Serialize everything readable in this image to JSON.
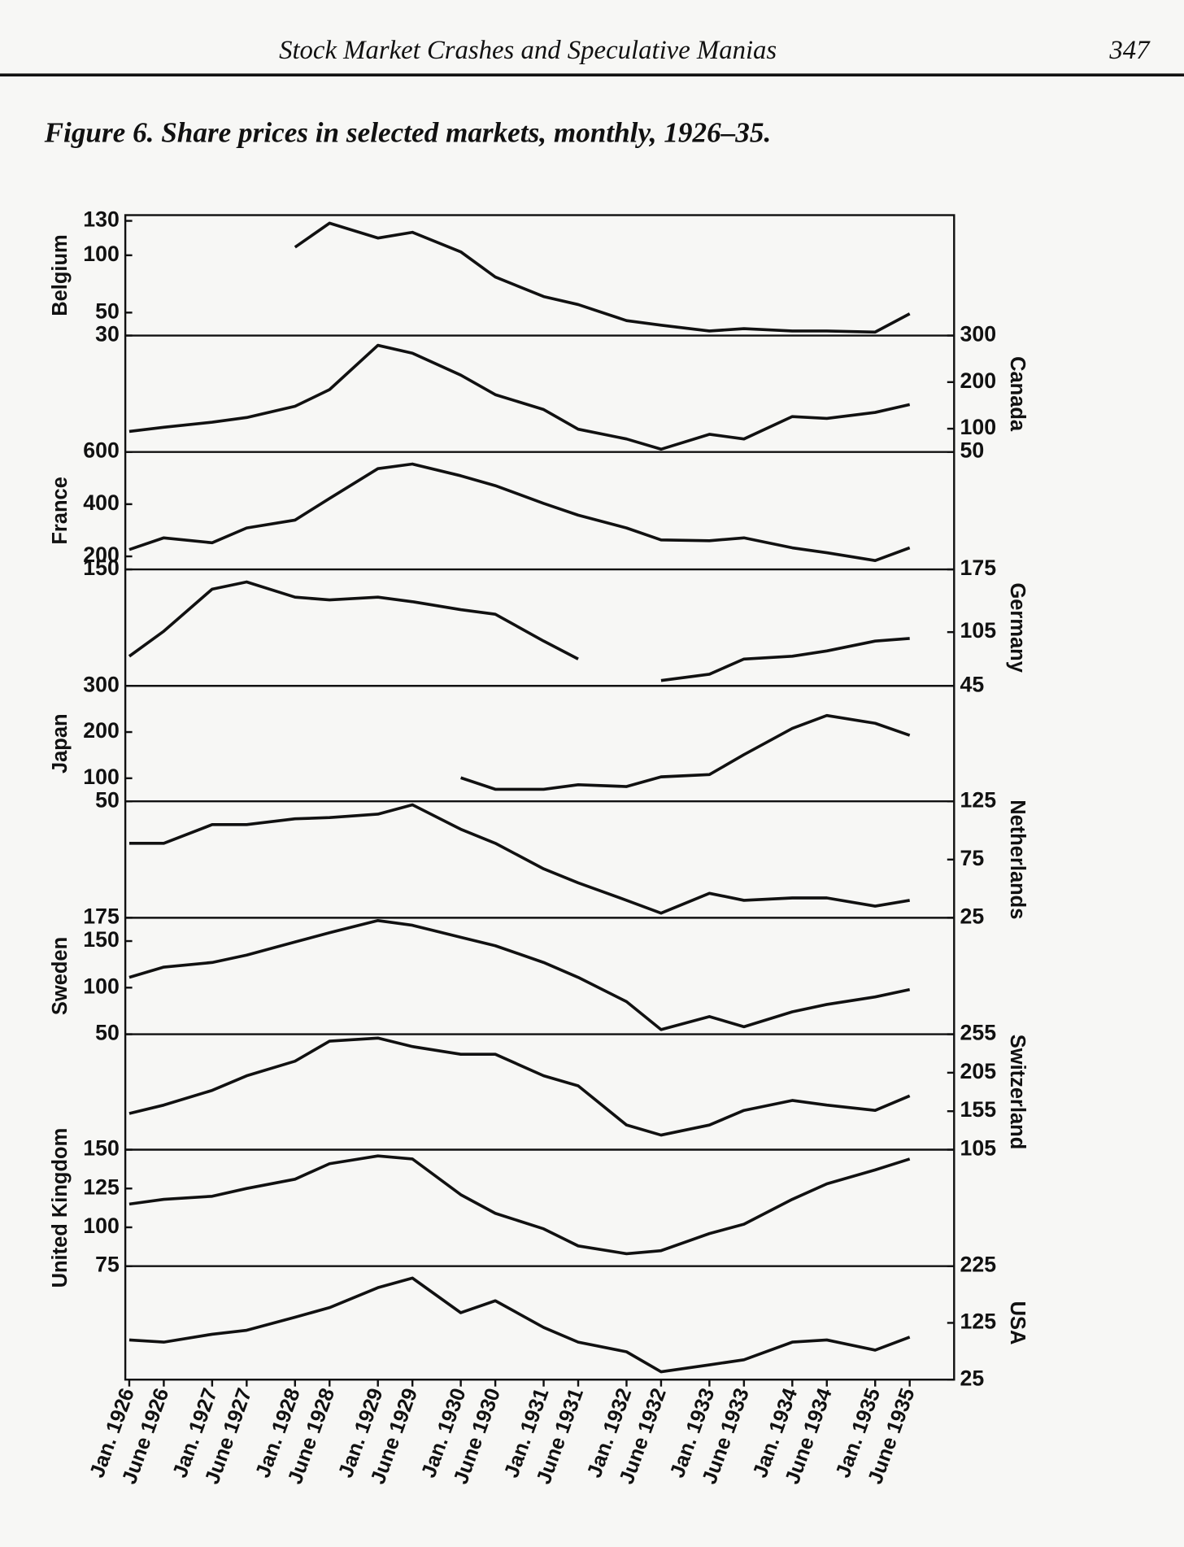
{
  "header": {
    "title": "Stock Market Crashes and Speculative Manias",
    "page_number": "347"
  },
  "caption": "Figure 6. Share prices in selected markets, monthly, 1926–35.",
  "chart_data": [
    {
      "type": "line",
      "ylabel": "Belgium",
      "y_axis": "left",
      "color": "#111111",
      "ylim": [
        30,
        135
      ],
      "yticks": [
        30,
        50,
        100,
        130
      ],
      "values": [
        null,
        null,
        null,
        null,
        107,
        128,
        115,
        120,
        103,
        81,
        64,
        57,
        43,
        39,
        34,
        36,
        34,
        34,
        33,
        49
      ]
    },
    {
      "type": "line",
      "ylabel": "Canada",
      "y_axis": "right",
      "color": "#111111",
      "ylim": [
        50,
        300
      ],
      "yticks": [
        50,
        100,
        200,
        300
      ],
      "values": [
        94,
        103,
        114,
        124,
        148,
        184,
        279,
        262,
        215,
        173,
        141,
        99,
        78,
        56,
        88,
        78,
        126,
        122,
        135,
        152
      ]
    },
    {
      "type": "line",
      "ylabel": "France",
      "y_axis": "left",
      "color": "#111111",
      "ylim": [
        150,
        600
      ],
      "yticks": [
        150,
        200,
        400,
        600
      ],
      "values": [
        226,
        271,
        252,
        309,
        339,
        422,
        536,
        554,
        509,
        471,
        403,
        358,
        309,
        263,
        260,
        271,
        233,
        214,
        184,
        233
      ]
    },
    {
      "type": "line",
      "ylabel": "Germany",
      "y_axis": "right",
      "color": "#111111",
      "ylim": [
        45,
        175
      ],
      "yticks": [
        45,
        105,
        175
      ],
      "values": [
        78,
        106,
        153,
        161,
        144,
        141,
        144,
        139,
        130,
        125,
        95,
        75,
        null,
        51,
        58,
        75,
        78,
        84,
        95,
        98
      ]
    },
    {
      "type": "line",
      "ylabel": "Japan",
      "y_axis": "left",
      "color": "#111111",
      "ylim": [
        50,
        300
      ],
      "yticks": [
        50,
        100,
        200,
        300
      ],
      "values": [
        null,
        null,
        null,
        null,
        null,
        null,
        null,
        null,
        101,
        76,
        76,
        86,
        82,
        103,
        108,
        151,
        208,
        236,
        219,
        193
      ]
    },
    {
      "type": "line",
      "ylabel": "Netherlands",
      "y_axis": "right",
      "color": "#111111",
      "ylim": [
        25,
        125
      ],
      "yticks": [
        25,
        75,
        125
      ],
      "values": [
        89,
        89,
        105,
        105,
        110,
        111,
        114,
        122,
        101,
        89,
        67,
        55,
        40,
        29,
        46,
        40,
        42,
        42,
        35,
        40
      ]
    },
    {
      "type": "line",
      "ylabel": "Sweden",
      "y_axis": "left",
      "color": "#111111",
      "ylim": [
        50,
        175
      ],
      "yticks": [
        50,
        100,
        150,
        175
      ],
      "values": [
        111,
        122,
        127,
        135,
        149,
        159,
        172,
        167,
        154,
        145,
        127,
        111,
        85,
        55,
        69,
        58,
        74,
        82,
        90,
        98
      ]
    },
    {
      "type": "line",
      "ylabel": "Switzerland",
      "y_axis": "right",
      "color": "#111111",
      "ylim": [
        105,
        255
      ],
      "yticks": [
        105,
        155,
        205,
        255
      ],
      "values": [
        152,
        163,
        182,
        201,
        220,
        246,
        250,
        239,
        229,
        229,
        201,
        188,
        137,
        124,
        137,
        156,
        169,
        163,
        156,
        175
      ]
    },
    {
      "type": "line",
      "ylabel": "United Kingdom",
      "y_axis": "left",
      "color": "#111111",
      "ylim": [
        75,
        150
      ],
      "yticks": [
        75,
        100,
        125,
        150
      ],
      "values": [
        115,
        118,
        120,
        125,
        131,
        141,
        146,
        144,
        121,
        109,
        99,
        88,
        83,
        85,
        96,
        102,
        118,
        128,
        137,
        144
      ]
    },
    {
      "type": "line",
      "ylabel": "USA",
      "y_axis": "right",
      "color": "#111111",
      "ylim": [
        25,
        225
      ],
      "yticks": [
        25,
        125,
        225
      ],
      "categories": [
        "Jan. 1926",
        "June 1926",
        "Jan. 1927",
        "June 1927",
        "Jan. 1928",
        "June 1928",
        "Jan. 1929",
        "June 1929",
        "Jan. 1930",
        "June 1930",
        "Jan. 1931",
        "June 1931",
        "Jan. 1932",
        "June 1932",
        "Jan. 1933",
        "June 1933",
        "Jan. 1934",
        "June 1934",
        "Jan. 1935",
        "June 1935"
      ],
      "values": [
        95,
        91,
        105,
        112,
        135,
        152,
        187,
        204,
        143,
        164,
        117,
        91,
        74,
        39,
        51,
        60,
        91,
        95,
        77,
        100
      ]
    }
  ]
}
